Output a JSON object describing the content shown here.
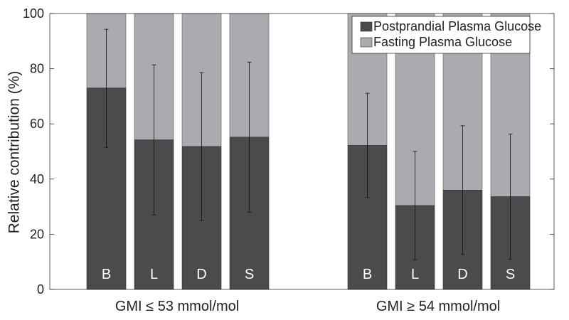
{
  "chart_data": {
    "type": "bar",
    "stacked": true,
    "ylabel": "Relative contribution (%)",
    "ylim": [
      0,
      100
    ],
    "yticks": [
      0,
      20,
      40,
      60,
      80,
      100
    ],
    "groups": [
      {
        "label": "GMI ≤ 53 mmol/mol",
        "bars": [
          {
            "label": "B",
            "postprandial": 73,
            "error_low": 51.5,
            "error_high": 94.3
          },
          {
            "label": "L",
            "postprandial": 54.2,
            "error_low": 27,
            "error_high": 81.4
          },
          {
            "label": "D",
            "postprandial": 51.8,
            "error_low": 25,
            "error_high": 78.6
          },
          {
            "label": "S",
            "postprandial": 55.2,
            "error_low": 28,
            "error_high": 82.4
          }
        ]
      },
      {
        "label": "GMI ≥ 54 mmol/mol",
        "bars": [
          {
            "label": "B",
            "postprandial": 52.2,
            "error_low": 33.3,
            "error_high": 71.1
          },
          {
            "label": "L",
            "postprandial": 30.4,
            "error_low": 10.8,
            "error_high": 50
          },
          {
            "label": "D",
            "postprandial": 36,
            "error_low": 12.7,
            "error_high": 59.3
          },
          {
            "label": "S",
            "postprandial": 33.6,
            "error_low": 10.9,
            "error_high": 56.3
          }
        ]
      }
    ],
    "series": [
      {
        "name": "Postprandial Plasma Glucose",
        "color": "#4a4b4d"
      },
      {
        "name": "Fasting Plasma Glucose",
        "color": "#a9abb1"
      }
    ],
    "legend": {
      "position": "top-right"
    },
    "grid": false
  }
}
